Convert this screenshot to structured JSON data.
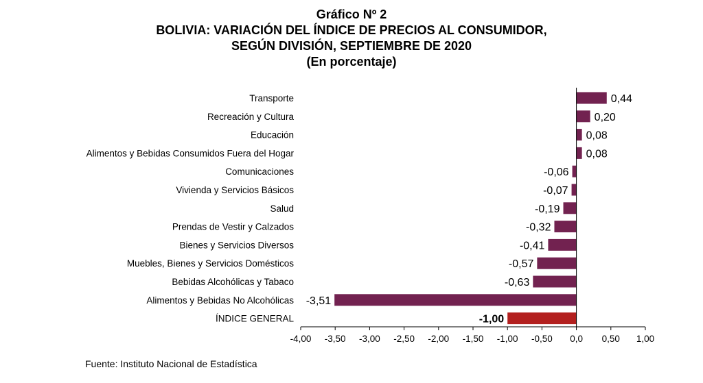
{
  "header": {
    "line1": "Gráfico Nº 2",
    "line2": "BOLIVIA: VARIACIÓN DEL ÍNDICE DE PRECIOS AL CONSUMIDOR,",
    "line3": "SEGÚN DIVISIÓN, SEPTIEMBRE DE 2020",
    "line4": "(En porcentaje)"
  },
  "source": "Fuente: Instituto Nacional de Estadística",
  "colors": {
    "bar": "#722250",
    "highlight": "#b3201f"
  },
  "chart_data": {
    "type": "bar",
    "orientation": "horizontal",
    "title": "Gráfico Nº 2 BOLIVIA: VARIACIÓN DEL ÍNDICE DE PRECIOS AL CONSUMIDOR, SEGÚN DIVISIÓN, SEPTIEMBRE DE 2020",
    "subtitle": "(En porcentaje)",
    "categories": [
      "Transporte",
      "Recreación y Cultura",
      "Educación",
      "Alimentos y Bebidas Consumidos Fuera del Hogar",
      "Comunicaciones",
      "Vivienda y Servicios Básicos",
      "Salud",
      "Prendas de Vestir y Calzados",
      "Bienes y Servicios Diversos",
      "Muebles, Bienes y Servicios Domésticos",
      "Bebidas Alcohólicas y Tabaco",
      "Alimentos y Bebidas No Alcohólicas",
      "ÍNDICE GENERAL"
    ],
    "values": [
      0.44,
      0.2,
      0.08,
      0.08,
      -0.06,
      -0.07,
      -0.19,
      -0.32,
      -0.41,
      -0.57,
      -0.63,
      -3.51,
      -1.0
    ],
    "data_labels": [
      "0,44",
      "0,20",
      "0,08",
      "0,08",
      "-0,06",
      "-0,07",
      "-0,19",
      "-0,32",
      "-0,41",
      "-0,57",
      "-0,63",
      "-3,51",
      "-1,00"
    ],
    "highlight_index": 12,
    "xlim": [
      -4.0,
      1.0
    ],
    "x_ticks": [
      -4.0,
      -3.5,
      -3.0,
      -2.5,
      -2.0,
      -1.5,
      -1.0,
      -0.5,
      0.0,
      0.5,
      1.0
    ],
    "x_tick_labels": [
      "-4,00",
      "-3,50",
      "-3,00",
      "-2,50",
      "-2,00",
      "-1,50",
      "-1,00",
      "-0,50",
      "0,0",
      "0,50",
      "1,00"
    ],
    "grid": false,
    "legend": "none"
  }
}
